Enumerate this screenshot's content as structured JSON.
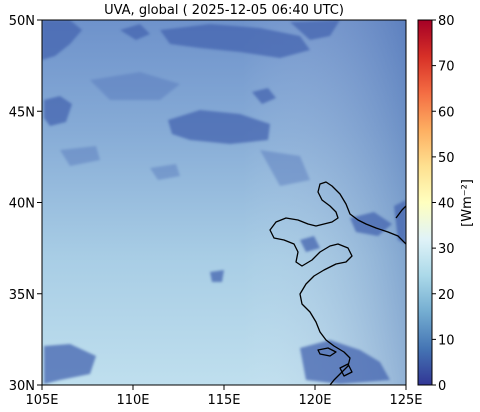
{
  "title": "UVA, global ( 2025-12-05 06:40 UTC)",
  "map": {
    "lon_range": [
      105,
      125
    ],
    "lat_range": [
      30,
      50
    ],
    "x_ticks": [
      {
        "value": 105,
        "label": "105E"
      },
      {
        "value": 110,
        "label": "110E"
      },
      {
        "value": 115,
        "label": "115E"
      },
      {
        "value": 120,
        "label": "120E"
      },
      {
        "value": 125,
        "label": "125E"
      }
    ],
    "y_ticks": [
      {
        "value": 30,
        "label": "30N"
      },
      {
        "value": 35,
        "label": "35N"
      },
      {
        "value": 40,
        "label": "40N"
      },
      {
        "value": 45,
        "label": "45N"
      },
      {
        "value": 50,
        "label": "50N"
      }
    ]
  },
  "colorbar": {
    "range": [
      0,
      80
    ],
    "ticks": [
      {
        "value": 0,
        "label": "0"
      },
      {
        "value": 10,
        "label": "10"
      },
      {
        "value": 20,
        "label": "20"
      },
      {
        "value": 30,
        "label": "30"
      },
      {
        "value": 40,
        "label": "40"
      },
      {
        "value": 50,
        "label": "50"
      },
      {
        "value": 60,
        "label": "60"
      },
      {
        "value": 70,
        "label": "70"
      },
      {
        "value": 80,
        "label": "80"
      }
    ],
    "unit_label": "[Wm⁻²]",
    "colormap": "RdYlBu_r"
  },
  "colors": {
    "ocean_light": "#b9dcec",
    "land_mid": "#7fa8d2",
    "cloud": "#4a6bb5",
    "coastline": "#000000"
  }
}
